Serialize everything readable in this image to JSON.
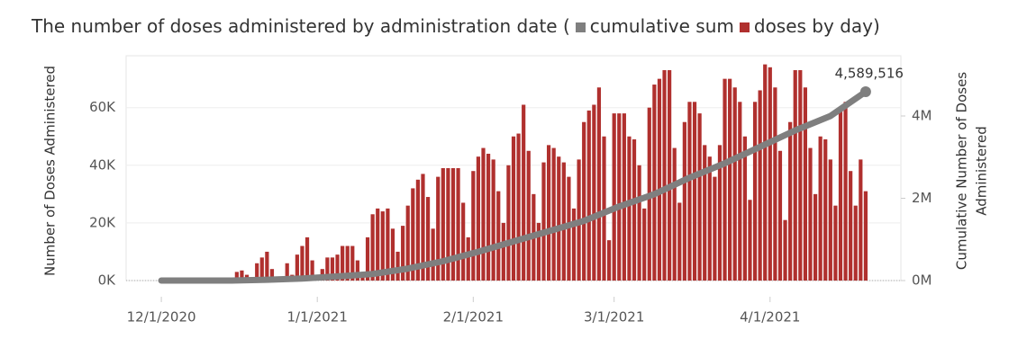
{
  "chart_data": {
    "type": "bar",
    "title": "The number of doses administered by administration date (",
    "title_end": ")",
    "ylabel": "Number of Doses Administered",
    "y2label": [
      "Cumulative Number of Doses",
      "Administered"
    ],
    "annotation": "4,589,516",
    "xlim": [
      "11/24/2020",
      "4/27/2021"
    ],
    "xticks": [
      "12/1/2020",
      "1/1/2021",
      "2/1/2021",
      "3/1/2021",
      "4/1/2021"
    ],
    "ylim": [
      0,
      78000
    ],
    "yticks": [
      {
        "value": 0,
        "label": "0K"
      },
      {
        "value": 20000,
        "label": "20K"
      },
      {
        "value": 40000,
        "label": "40K"
      },
      {
        "value": 60000,
        "label": "60K"
      }
    ],
    "y2lim": [
      0,
      5464000
    ],
    "y2ticks": [
      {
        "value": 0,
        "label": "0M"
      },
      {
        "value": 2000000,
        "label": "2M"
      },
      {
        "value": 4000000,
        "label": "4M"
      }
    ],
    "grid": true,
    "series": [
      {
        "name": "cumulative sum",
        "color": "#7f7f7f",
        "type": "line",
        "axis": "y2",
        "x": [
          "12/1/2020",
          "12/15/2020",
          "12/22/2020",
          "12/29/2020",
          "1/5/2021",
          "1/12/2021",
          "1/19/2021",
          "1/26/2021",
          "2/2/2021",
          "2/9/2021",
          "2/16/2021",
          "2/23/2021",
          "3/2/2021",
          "3/9/2021",
          "3/16/2021",
          "3/23/2021",
          "3/30/2021",
          "4/6/2021",
          "4/13/2021",
          "4/20/2021"
        ],
        "values": [
          0,
          0,
          20000,
          50000,
          100000,
          160000,
          290000,
          470000,
          700000,
          950000,
          1200000,
          1450000,
          1800000,
          2100000,
          2500000,
          2850000,
          3250000,
          3650000,
          4000000,
          4589516
        ]
      },
      {
        "name": "doses by day",
        "color": "#b0302e",
        "type": "bar",
        "x": [
          "12/16/2020",
          "12/17/2020",
          "12/18/2020",
          "12/19/2020",
          "12/20/2020",
          "12/21/2020",
          "12/22/2020",
          "12/23/2020",
          "12/24/2020",
          "12/25/2020",
          "12/26/2020",
          "12/27/2020",
          "12/28/2020",
          "12/29/2020",
          "12/30/2020",
          "12/31/2020",
          "1/1/2021",
          "1/2/2021",
          "1/3/2021",
          "1/4/2021",
          "1/5/2021",
          "1/6/2021",
          "1/7/2021",
          "1/8/2021",
          "1/9/2021",
          "1/10/2021",
          "1/11/2021",
          "1/12/2021",
          "1/13/2021",
          "1/14/2021",
          "1/15/2021",
          "1/16/2021",
          "1/17/2021",
          "1/18/2021",
          "1/19/2021",
          "1/20/2021",
          "1/21/2021",
          "1/22/2021",
          "1/23/2021",
          "1/24/2021",
          "1/25/2021",
          "1/26/2021",
          "1/27/2021",
          "1/28/2021",
          "1/29/2021",
          "1/30/2021",
          "1/31/2021",
          "2/1/2021",
          "2/2/2021",
          "2/3/2021",
          "2/4/2021",
          "2/5/2021",
          "2/6/2021",
          "2/7/2021",
          "2/8/2021",
          "2/9/2021",
          "2/10/2021",
          "2/11/2021",
          "2/12/2021",
          "2/13/2021",
          "2/14/2021",
          "2/15/2021",
          "2/16/2021",
          "2/17/2021",
          "2/18/2021",
          "2/19/2021",
          "2/20/2021",
          "2/21/2021",
          "2/22/2021",
          "2/23/2021",
          "2/24/2021",
          "2/25/2021",
          "2/26/2021",
          "2/27/2021",
          "2/28/2021",
          "3/1/2021",
          "3/2/2021",
          "3/3/2021",
          "3/4/2021",
          "3/5/2021",
          "3/6/2021",
          "3/7/2021",
          "3/8/2021",
          "3/9/2021",
          "3/10/2021",
          "3/11/2021",
          "3/12/2021",
          "3/13/2021",
          "3/14/2021",
          "3/15/2021",
          "3/16/2021",
          "3/17/2021",
          "3/18/2021",
          "3/19/2021",
          "3/20/2021",
          "3/21/2021",
          "3/22/2021",
          "3/23/2021",
          "3/24/2021",
          "3/25/2021",
          "3/26/2021",
          "3/27/2021",
          "3/28/2021",
          "3/29/2021",
          "3/30/2021",
          "3/31/2021",
          "4/1/2021",
          "4/2/2021",
          "4/3/2021",
          "4/4/2021",
          "4/5/2021",
          "4/6/2021",
          "4/7/2021",
          "4/8/2021",
          "4/9/2021",
          "4/10/2021",
          "4/11/2021",
          "4/12/2021",
          "4/13/2021",
          "4/14/2021",
          "4/15/2021",
          "4/16/2021",
          "4/17/2021",
          "4/18/2021",
          "4/19/2021",
          "4/20/2021"
        ],
        "values": [
          3000,
          3500,
          2000,
          1000,
          6000,
          8000,
          10000,
          4000,
          1000,
          0,
          6000,
          2000,
          9000,
          12000,
          15000,
          7000,
          1000,
          4000,
          8000,
          8000,
          9000,
          12000,
          12000,
          12000,
          7000,
          2000,
          15000,
          23000,
          25000,
          24000,
          25000,
          18000,
          10000,
          19000,
          26000,
          32000,
          35000,
          37000,
          29000,
          18000,
          36000,
          39000,
          39000,
          39000,
          39000,
          27000,
          15000,
          38000,
          43000,
          46000,
          44000,
          42000,
          31000,
          20000,
          40000,
          50000,
          51000,
          61000,
          45000,
          30000,
          20000,
          41000,
          47000,
          46000,
          43000,
          41000,
          36000,
          25000,
          42000,
          55000,
          59000,
          61000,
          67000,
          50000,
          14000,
          58000,
          58000,
          58000,
          50000,
          49000,
          40000,
          25000,
          60000,
          68000,
          70000,
          73000,
          73000,
          46000,
          27000,
          55000,
          62000,
          62000,
          58000,
          47000,
          43000,
          36000,
          47000,
          70000,
          70000,
          67000,
          62000,
          50000,
          28000,
          62000,
          66000,
          75000,
          74000,
          67000,
          45000,
          21000,
          55000,
          73000,
          73000,
          67000,
          46000,
          30000,
          50000,
          49000,
          42000,
          26000,
          59000,
          62000,
          38000,
          26000,
          42000,
          31000
        ]
      }
    ]
  }
}
